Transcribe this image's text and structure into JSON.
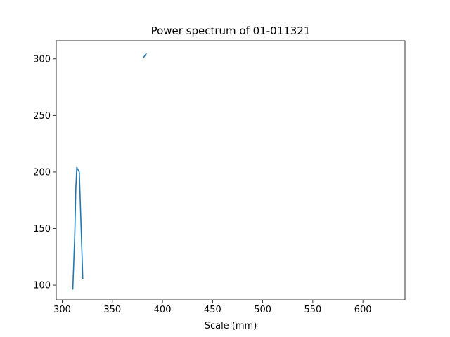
{
  "chart_data": {
    "type": "line",
    "title": "Power spectrum of 01-011321",
    "xlabel": "Scale (mm)",
    "ylabel": "",
    "xlim": [
      294,
      642
    ],
    "ylim": [
      87,
      316
    ],
    "xticks": [
      300,
      350,
      400,
      450,
      500,
      550,
      600
    ],
    "yticks": [
      100,
      150,
      200,
      250,
      300
    ],
    "grid": false,
    "series": [
      {
        "color": "#1f77b4",
        "segments": [
          [
            [
              310.5,
              96
            ],
            [
              312.5,
              145
            ],
            [
              313.5,
              185
            ],
            [
              314.5,
              204
            ],
            [
              317,
              200
            ],
            [
              320.5,
              105
            ]
          ],
          [
            [
              381,
              301
            ],
            [
              384,
              305
            ]
          ]
        ]
      }
    ]
  }
}
